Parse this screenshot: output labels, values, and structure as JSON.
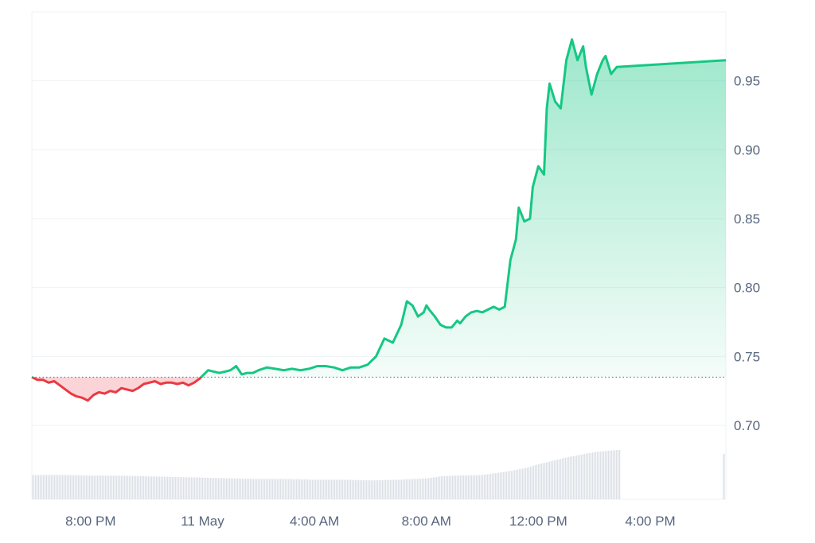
{
  "chart_data": {
    "type": "area",
    "title": "",
    "xlabel": "",
    "ylabel": "",
    "x_tick_labels": [
      "8:00 PM",
      "11 May",
      "4:00 AM",
      "8:00 AM",
      "12:00 PM",
      "4:00 PM"
    ],
    "x_tick_hours": [
      20,
      24,
      28,
      32,
      36,
      40
    ],
    "x_range_hours": [
      17.9,
      42.7
    ],
    "y_ticks": [
      "0.70",
      "0.75",
      "0.80",
      "0.85",
      "0.90",
      "0.95"
    ],
    "y_tick_values": [
      0.7,
      0.75,
      0.8,
      0.85,
      0.9,
      0.95
    ],
    "ylim": [
      0.7,
      1.0
    ],
    "baseline": 0.735,
    "colors": {
      "up_line": "#16c784",
      "down_line": "#ea3943",
      "up_fill": "#16c784",
      "down_fill": "#ea3943",
      "grid": "#eff2f5",
      "baseline": "#58667e",
      "volume": "#dde1e7"
    },
    "price_series": {
      "x_hours": [
        17.9,
        18.1,
        18.3,
        18.5,
        18.7,
        18.9,
        19.1,
        19.3,
        19.5,
        19.7,
        19.9,
        20.1,
        20.3,
        20.5,
        20.7,
        20.9,
        21.1,
        21.3,
        21.5,
        21.7,
        21.9,
        22.1,
        22.3,
        22.5,
        22.7,
        22.9,
        23.1,
        23.3,
        23.5,
        23.7,
        23.9,
        24.2,
        24.4,
        24.6,
        24.8,
        25.0,
        25.2,
        25.4,
        25.6,
        25.8,
        26.0,
        26.3,
        26.6,
        26.9,
        27.2,
        27.5,
        27.8,
        28.1,
        28.4,
        28.7,
        29.0,
        29.3,
        29.6,
        29.9,
        30.2,
        30.5,
        30.8,
        31.1,
        31.3,
        31.5,
        31.7,
        31.9,
        32.0,
        32.1,
        32.3,
        32.5,
        32.7,
        32.9,
        33.1,
        33.2,
        33.4,
        33.6,
        33.8,
        34.0,
        34.2,
        34.4,
        34.6,
        34.8,
        35.0,
        35.2,
        35.3,
        35.5,
        35.7,
        35.8,
        36.0,
        36.2,
        36.3,
        36.4,
        36.6,
        36.8,
        37.0,
        37.2,
        37.4,
        37.6,
        37.7,
        37.9,
        38.1,
        38.3,
        38.4,
        38.6,
        38.8,
        42.7
      ],
      "y": [
        0.735,
        0.733,
        0.733,
        0.731,
        0.732,
        0.729,
        0.726,
        0.723,
        0.721,
        0.72,
        0.718,
        0.722,
        0.724,
        0.723,
        0.725,
        0.724,
        0.727,
        0.726,
        0.725,
        0.727,
        0.73,
        0.731,
        0.732,
        0.73,
        0.731,
        0.731,
        0.73,
        0.731,
        0.729,
        0.731,
        0.734,
        0.74,
        0.739,
        0.738,
        0.739,
        0.74,
        0.743,
        0.737,
        0.738,
        0.738,
        0.74,
        0.742,
        0.741,
        0.74,
        0.741,
        0.74,
        0.741,
        0.743,
        0.743,
        0.742,
        0.74,
        0.742,
        0.742,
        0.744,
        0.75,
        0.763,
        0.76,
        0.773,
        0.79,
        0.787,
        0.779,
        0.782,
        0.787,
        0.784,
        0.779,
        0.773,
        0.771,
        0.771,
        0.776,
        0.774,
        0.779,
        0.782,
        0.783,
        0.782,
        0.784,
        0.786,
        0.784,
        0.786,
        0.82,
        0.835,
        0.858,
        0.848,
        0.85,
        0.873,
        0.888,
        0.882,
        0.93,
        0.948,
        0.935,
        0.93,
        0.965,
        0.98,
        0.965,
        0.975,
        0.96,
        0.94,
        0.955,
        0.965,
        0.968,
        0.955,
        0.96,
        0.965
      ]
    },
    "volume_series": {
      "x_hours": [
        17.9,
        19.0,
        20.0,
        21.0,
        22.0,
        23.0,
        24.0,
        25.0,
        26.0,
        27.0,
        28.0,
        29.0,
        30.0,
        31.0,
        31.5,
        32.0,
        32.5,
        33.0,
        34.0,
        35.0,
        35.5,
        36.0,
        36.5,
        37.0,
        37.5,
        38.0,
        38.5,
        38.9
      ],
      "values": [
        0.36,
        0.36,
        0.35,
        0.35,
        0.34,
        0.33,
        0.32,
        0.31,
        0.3,
        0.3,
        0.29,
        0.29,
        0.28,
        0.29,
        0.3,
        0.31,
        0.34,
        0.35,
        0.36,
        0.42,
        0.46,
        0.52,
        0.57,
        0.62,
        0.66,
        0.7,
        0.72,
        0.73
      ],
      "last_bar_value": 0.67,
      "last_bar_hour": 42.6
    }
  }
}
